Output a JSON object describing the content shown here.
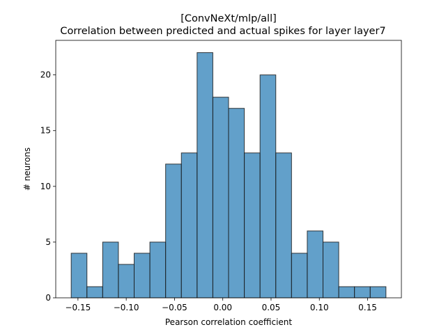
{
  "chart_data": {
    "type": "bar",
    "title_line1": "[ConvNeXt/mlp/all]",
    "title_line2": "Correlation between predicted and actual spikes for layer layer7",
    "xlabel": "Pearson correlation coefficient",
    "ylabel": "# neurons",
    "xlim": [
      -0.173,
      0.185
    ],
    "ylim": [
      0,
      23.1
    ],
    "xticks": [
      -0.15,
      -0.1,
      -0.05,
      0.0,
      0.05,
      0.1,
      0.15
    ],
    "xtick_labels": [
      "−0.15",
      "−0.10",
      "−0.05",
      "0.00",
      "0.05",
      "0.10",
      "0.15"
    ],
    "yticks": [
      0,
      5,
      10,
      15,
      20
    ],
    "ytick_labels": [
      "0",
      "5",
      "10",
      "15",
      "20"
    ],
    "bar_color": "#1f77b4",
    "bin_edges": [
      -0.157,
      -0.1407,
      -0.1244,
      -0.1081,
      -0.0918,
      -0.0755,
      -0.0592,
      -0.0429,
      -0.0266,
      -0.0103,
      0.006,
      0.0223,
      0.0386,
      0.0549,
      0.0712,
      0.0875,
      0.1038,
      0.1201,
      0.1364,
      0.1527,
      0.169
    ],
    "values": [
      4,
      1,
      5,
      3,
      4,
      5,
      12,
      13,
      22,
      18,
      17,
      13,
      20,
      13,
      4,
      6,
      5,
      1,
      1,
      1
    ],
    "grid": false
  }
}
